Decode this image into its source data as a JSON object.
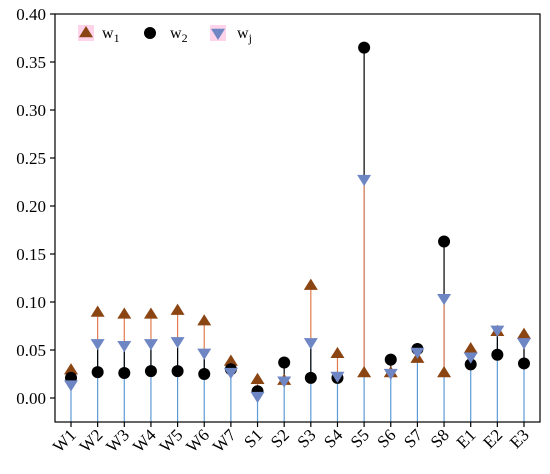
{
  "chart_data": {
    "type": "scatter",
    "categories": [
      "W1",
      "W2",
      "W3",
      "W4",
      "W5",
      "W6",
      "W7",
      "S1",
      "S2",
      "S3",
      "S4",
      "S5",
      "S6",
      "S7",
      "S8",
      "E1",
      "E2",
      "E3"
    ],
    "ylim": [
      -0.025,
      0.4
    ],
    "yticks": [
      0.0,
      0.05,
      0.1,
      0.15,
      0.2,
      0.25,
      0.3,
      0.35,
      0.4
    ],
    "ytick_labels": [
      "0.00",
      "0.05",
      "0.10",
      "0.15",
      "0.20",
      "0.25",
      "0.30",
      "0.35",
      "0.40"
    ],
    "grid": false,
    "legend_position": "top-left",
    "series": [
      {
        "name": "w1",
        "label_base": "w",
        "label_sub": "1",
        "marker": "triangle-up",
        "color": "#8b4513",
        "values": [
          0.029,
          0.089,
          0.087,
          0.087,
          0.091,
          0.08,
          0.038,
          0.019,
          0.018,
          0.117,
          0.046,
          0.026,
          0.026,
          0.041,
          0.026,
          0.051,
          0.069,
          0.066
        ]
      },
      {
        "name": "w2",
        "label_base": "w",
        "label_sub": "2",
        "marker": "circle",
        "color": "#000000",
        "values": [
          0.021,
          0.027,
          0.026,
          0.028,
          0.028,
          0.025,
          0.03,
          0.007,
          0.037,
          0.021,
          0.021,
          0.365,
          0.04,
          0.051,
          0.163,
          0.035,
          0.045,
          0.036
        ]
      },
      {
        "name": "wj",
        "label_base": "w",
        "label_sub": "j",
        "marker": "triangle-down",
        "color": "#6f86c4",
        "values": [
          0.014,
          0.057,
          0.055,
          0.057,
          0.059,
          0.047,
          0.027,
          0.002,
          0.018,
          0.058,
          0.023,
          0.228,
          0.026,
          0.048,
          0.104,
          0.043,
          0.071,
          0.058
        ]
      }
    ],
    "colors": {
      "stem_wj": "#5b9bd5",
      "stem_w1": "#e07a4f",
      "stem_w2": "#000000",
      "legend_pink": "#ff9fd0"
    }
  }
}
